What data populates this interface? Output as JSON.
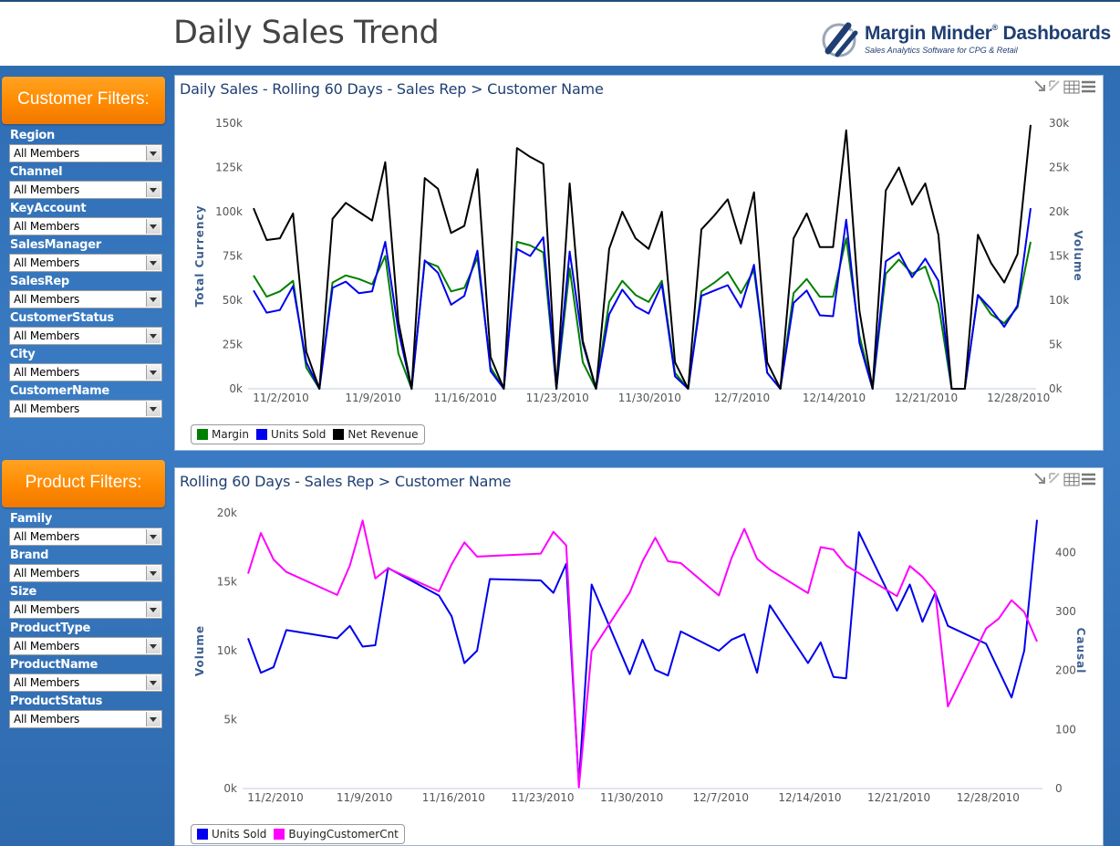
{
  "header": {
    "title": "Daily Sales Trend",
    "logo_name": "Margin Minder",
    "logo_name2": " Dashboards",
    "logo_reg": "®",
    "logo_tagline": "Sales Analytics Software for CPG & Retail"
  },
  "customer_filters": {
    "title": "Customer Filters:",
    "items": [
      {
        "label": "Region",
        "value": "All Members"
      },
      {
        "label": "Channel",
        "value": "All Members"
      },
      {
        "label": "KeyAccount",
        "value": "All Members"
      },
      {
        "label": "SalesManager",
        "value": "All Members"
      },
      {
        "label": "SalesRep",
        "value": "All Members"
      },
      {
        "label": "CustomerStatus",
        "value": "All Members"
      },
      {
        "label": "City",
        "value": "All Members"
      },
      {
        "label": "CustomerName",
        "value": "All Members"
      }
    ]
  },
  "product_filters": {
    "title": "Product Filters:",
    "items": [
      {
        "label": "Family",
        "value": "All Members"
      },
      {
        "label": "Brand",
        "value": "All Members"
      },
      {
        "label": "Size",
        "value": "All Members"
      },
      {
        "label": "ProductType",
        "value": "All Members"
      },
      {
        "label": "ProductName",
        "value": "All Members"
      },
      {
        "label": "ProductStatus",
        "value": "All Members"
      }
    ]
  },
  "colors": {
    "margin": "#007f00",
    "units_sold": "#0000ee",
    "net_revenue": "#000000",
    "buying_customer_cnt": "#ff00ff",
    "orange": "#ff8a00",
    "panel_title": "#1f3f73"
  },
  "chart_data": [
    {
      "type": "line",
      "title": "Daily Sales - Rolling 60 Days - Sales Rep > Customer Name",
      "ylabel": "Total Currency",
      "y2label": "Volume",
      "ylim": [
        0,
        150000
      ],
      "y2lim": [
        0,
        30000
      ],
      "yticks": [
        "0k",
        "25k",
        "50k",
        "75k",
        "100k",
        "125k",
        "150k"
      ],
      "y2ticks": [
        "0k",
        "5k",
        "10k",
        "15k",
        "20k",
        "25k",
        "30k"
      ],
      "xtick_labels": [
        "11/2/2010",
        "11/9/2010",
        "11/16/2010",
        "11/23/2010",
        "11/30/2010",
        "12/7/2010",
        "12/14/2010",
        "12/21/2010",
        "12/28/2010"
      ],
      "x_start_date": "2010-11-01",
      "x_days": 60,
      "xtick_index": [
        1,
        8,
        15,
        22,
        29,
        36,
        43,
        50,
        57
      ],
      "legend": [
        "Margin",
        "Units Sold",
        "Net Revenue"
      ],
      "series": [
        {
          "name": "Margin",
          "axis": "left",
          "color": "#007f00",
          "values": [
            64000,
            52000,
            55000,
            61000,
            12000,
            0,
            60000,
            64000,
            62000,
            59000,
            75000,
            20000,
            0,
            72000,
            69000,
            55000,
            57000,
            74000,
            12000,
            0,
            83000,
            81000,
            77000,
            0,
            68000,
            15000,
            0,
            49000,
            61000,
            53000,
            49000,
            61000,
            9000,
            0,
            55000,
            60000,
            66000,
            54000,
            67000,
            9000,
            0,
            54000,
            62000,
            52000,
            52000,
            85000,
            30000,
            0,
            65000,
            73000,
            65000,
            69000,
            48000,
            0,
            0,
            53000,
            42000,
            37000,
            46000,
            83000
          ]
        },
        {
          "name": "Units Sold",
          "axis": "right",
          "color": "#0000ee",
          "values": [
            11100,
            8600,
            8900,
            11600,
            3000,
            0,
            11400,
            12100,
            10800,
            11000,
            16600,
            6500,
            0,
            14500,
            13100,
            9500,
            10500,
            15600,
            2000,
            0,
            15800,
            15000,
            17100,
            0,
            15500,
            5100,
            0,
            8400,
            11200,
            9300,
            8500,
            11800,
            1400,
            0,
            10500,
            11100,
            11700,
            9200,
            14000,
            1800,
            0,
            9700,
            11100,
            8300,
            8200,
            19100,
            5200,
            0,
            14400,
            15400,
            12600,
            14700,
            12200,
            0,
            0,
            10600,
            9000,
            7000,
            9400,
            20400
          ]
        },
        {
          "name": "Net Revenue",
          "axis": "left",
          "color": "#000000",
          "values": [
            102000,
            84000,
            85000,
            99000,
            21000,
            0,
            96000,
            105000,
            100000,
            95000,
            128000,
            38000,
            0,
            119000,
            113000,
            88000,
            92000,
            124000,
            18000,
            0,
            136000,
            131000,
            127000,
            0,
            116000,
            27000,
            0,
            79000,
            100000,
            85000,
            79000,
            100000,
            15000,
            0,
            90000,
            98000,
            107000,
            82000,
            111000,
            15000,
            0,
            85000,
            99000,
            80000,
            80000,
            146000,
            44000,
            0,
            112000,
            125000,
            104000,
            116000,
            87000,
            0,
            0,
            87000,
            71000,
            60000,
            76000,
            149000
          ]
        }
      ]
    },
    {
      "type": "line",
      "title": "Rolling 60 Days - Sales Rep > Customer Name",
      "ylabel": "Volume",
      "y2label": "Causal",
      "ylim": [
        0,
        20000
      ],
      "y2lim": [
        0,
        467
      ],
      "yticks": [
        "0k",
        "5k",
        "10k",
        "15k",
        "20k"
      ],
      "y2ticks": [
        "0",
        "100",
        "200",
        "300",
        "400"
      ],
      "xtick_labels": [
        "11/2/2010",
        "11/9/2010",
        "11/16/2010",
        "11/23/2010",
        "11/30/2010",
        "12/7/2010",
        "12/14/2010",
        "12/21/2010",
        "12/28/2010"
      ],
      "x_start_date": "2010-11-01",
      "x_days": 60,
      "xtick_index": [
        1,
        8,
        15,
        22,
        29,
        36,
        43,
        50,
        57
      ],
      "legend": [
        "Units Sold",
        "BuyingCustomerCnt"
      ],
      "series": [
        {
          "name": "Units Sold",
          "axis": "left",
          "color": "#0000ee",
          "points": [
            [
              1,
              10900
            ],
            [
              2,
              8400
            ],
            [
              3,
              8800
            ],
            [
              4,
              11500
            ],
            [
              8,
              10900
            ],
            [
              9,
              11800
            ],
            [
              10,
              10300
            ],
            [
              11,
              10400
            ],
            [
              12,
              16000
            ],
            [
              16,
              14000
            ],
            [
              17,
              12500
            ],
            [
              18,
              9100
            ],
            [
              19,
              10000
            ],
            [
              20,
              15200
            ],
            [
              24,
              15100
            ],
            [
              25,
              14200
            ],
            [
              26,
              16300
            ],
            [
              27,
              300
            ],
            [
              28,
              14800
            ],
            [
              31,
              8300
            ],
            [
              32,
              10800
            ],
            [
              33,
              8600
            ],
            [
              34,
              8200
            ],
            [
              35,
              11400
            ],
            [
              38,
              10000
            ],
            [
              39,
              10800
            ],
            [
              40,
              11200
            ],
            [
              41,
              8400
            ],
            [
              42,
              13300
            ],
            [
              45,
              9100
            ],
            [
              46,
              10600
            ],
            [
              47,
              8100
            ],
            [
              48,
              8000
            ],
            [
              49,
              18600
            ],
            [
              52,
              12900
            ],
            [
              53,
              14800
            ],
            [
              54,
              12100
            ],
            [
              55,
              14200
            ],
            [
              56,
              11800
            ],
            [
              59,
              10500
            ],
            [
              61,
              6600
            ],
            [
              62,
              10000
            ],
            [
              63,
              19500
            ]
          ]
        },
        {
          "name": "BuyingCustomerCnt",
          "axis": "right",
          "color": "#ff00ff",
          "points": [
            [
              1,
              364
            ],
            [
              2,
              433
            ],
            [
              3,
              388
            ],
            [
              4,
              367
            ],
            [
              8,
              328
            ],
            [
              9,
              378
            ],
            [
              10,
              454
            ],
            [
              11,
              356
            ],
            [
              12,
              373
            ],
            [
              16,
              334
            ],
            [
              17,
              380
            ],
            [
              18,
              417
            ],
            [
              19,
              393
            ],
            [
              24,
              398
            ],
            [
              25,
              435
            ],
            [
              26,
              412
            ],
            [
              27,
              2
            ],
            [
              28,
              233
            ],
            [
              31,
              332
            ],
            [
              32,
              385
            ],
            [
              33,
              425
            ],
            [
              34,
              385
            ],
            [
              35,
              382
            ],
            [
              38,
              327
            ],
            [
              39,
              391
            ],
            [
              40,
              440
            ],
            [
              41,
              389
            ],
            [
              42,
              371
            ],
            [
              45,
              331
            ],
            [
              46,
              409
            ],
            [
              47,
              405
            ],
            [
              48,
              378
            ],
            [
              52,
              326
            ],
            [
              53,
              377
            ],
            [
              54,
              359
            ],
            [
              55,
              333
            ],
            [
              56,
              139
            ],
            [
              59,
              271
            ],
            [
              60,
              288
            ],
            [
              61,
              319
            ],
            [
              62,
              299
            ],
            [
              63,
              249
            ]
          ]
        }
      ]
    }
  ]
}
